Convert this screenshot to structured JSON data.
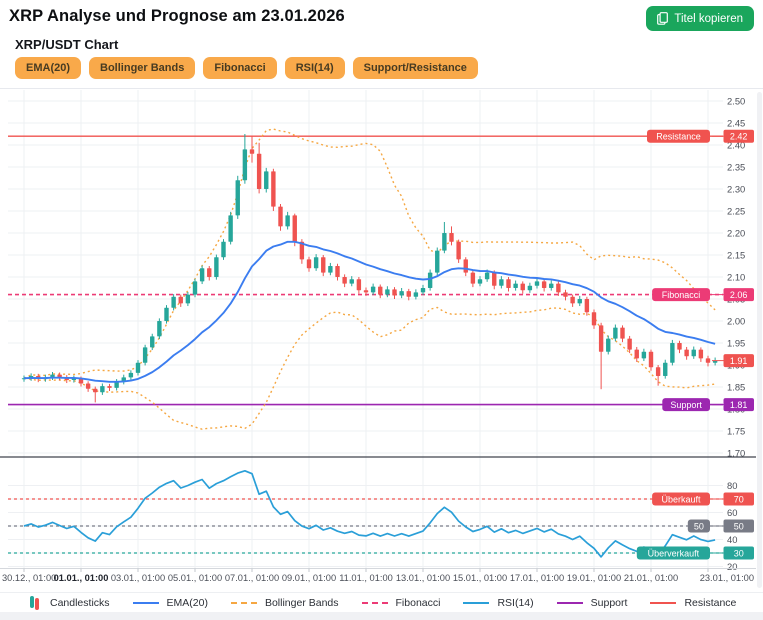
{
  "header": {
    "title": "XRP Analyse und Prognose am 23.01.2026",
    "copy_button": "Titel kopieren"
  },
  "chart_header": {
    "subtitle": "XRP/USDT Chart",
    "indicator_buttons": [
      "EMA(20)",
      "Bollinger Bands",
      "Fibonacci",
      "RSI(14)",
      "Support/Resistance"
    ]
  },
  "legend": {
    "items": [
      {
        "label": "Candlesticks",
        "type": "candles"
      },
      {
        "label": "EMA(20)",
        "color": "#3b7df0",
        "dash": "solid"
      },
      {
        "label": "Bollinger Bands",
        "color": "#f5a742",
        "dash": "dotted"
      },
      {
        "label": "Fibonacci",
        "color": "#ec3b76",
        "dash": "dotted"
      },
      {
        "label": "RSI(14)",
        "color": "#2a9fd8",
        "dash": "solid"
      },
      {
        "label": "Support",
        "color": "#9c27b0",
        "dash": "solid"
      },
      {
        "label": "Resistance",
        "color": "#f0534f",
        "dash": "solid"
      }
    ]
  },
  "colors": {
    "up": "#26a69a",
    "down": "#ef5350",
    "ema": "#3b7df0",
    "bb": "#f5a742",
    "fib": "#ec3b76",
    "support": "#9c27b0",
    "resistance": "#f0534f",
    "rsi": "#2a9fd8",
    "overbought": "#ef5350",
    "mid": "#787b86",
    "oversold": "#26a69a",
    "grid": "#eef0f3",
    "axis_text": "#4b4f58",
    "separator": "#40444e",
    "axis_border": "#d5d8dd"
  },
  "chart_data": {
    "type": "candlestick",
    "pair": "XRP/USDT",
    "x_ticks": [
      "30.12., 01:00",
      "01.01., 01:00",
      "03.01., 01:00",
      "05.01., 01:00",
      "07.01., 01:00",
      "09.01., 01:00",
      "11.01., 01:00",
      "13.01., 01:00",
      "15.01., 01:00",
      "17.01., 01:00",
      "19.01., 01:00",
      "21.01., 01:00",
      "23.01., 01:00"
    ],
    "bold_tick_index": 1,
    "price_axis": {
      "min": 1.7,
      "max": 2.5,
      "step": 0.05
    },
    "rsi_axis": {
      "min": 20,
      "max": 80,
      "step": 10
    },
    "levels": {
      "resistance": 2.42,
      "fibonacci": 2.06,
      "support": 1.81,
      "last_price": 1.91,
      "rsi_overbought": 70,
      "rsi_mid": 50,
      "rsi_oversold": 30
    },
    "level_labels": {
      "resistance": "Resistance",
      "fibonacci": "Fibonacci",
      "support": "Support",
      "overbought": "Überkauft",
      "mid": "50",
      "oversold": "Überverkauft"
    },
    "indicators": {
      "ema_period": 20,
      "bb_period": 20,
      "bb_mult": 2,
      "rsi_period": 14
    },
    "candles": [
      [
        1.868,
        1.876,
        1.862,
        1.87
      ],
      [
        1.87,
        1.881,
        1.864,
        1.875
      ],
      [
        1.875,
        1.88,
        1.861,
        1.868
      ],
      [
        1.868,
        1.878,
        1.862,
        1.872
      ],
      [
        1.872,
        1.884,
        1.866,
        1.878
      ],
      [
        1.878,
        1.883,
        1.865,
        1.872
      ],
      [
        1.872,
        1.877,
        1.859,
        1.866
      ],
      [
        1.866,
        1.876,
        1.86,
        1.87
      ],
      [
        1.87,
        1.874,
        1.851,
        1.858
      ],
      [
        1.858,
        1.863,
        1.839,
        1.846
      ],
      [
        1.846,
        1.851,
        1.815,
        1.838
      ],
      [
        1.838,
        1.858,
        1.832,
        1.852
      ],
      [
        1.852,
        1.857,
        1.841,
        1.848
      ],
      [
        1.848,
        1.868,
        1.842,
        1.862
      ],
      [
        1.862,
        1.878,
        1.856,
        1.872
      ],
      [
        1.872,
        1.888,
        1.866,
        1.882
      ],
      [
        1.882,
        1.911,
        1.876,
        1.905
      ],
      [
        1.905,
        1.946,
        1.899,
        1.94
      ],
      [
        1.94,
        1.971,
        1.934,
        1.965
      ],
      [
        1.965,
        2.006,
        1.959,
        2.0
      ],
      [
        2.0,
        2.036,
        1.994,
        2.03
      ],
      [
        2.03,
        2.061,
        2.024,
        2.055
      ],
      [
        2.055,
        2.06,
        2.032,
        2.04
      ],
      [
        2.04,
        2.066,
        2.034,
        2.06
      ],
      [
        2.06,
        2.096,
        2.054,
        2.09
      ],
      [
        2.09,
        2.126,
        2.084,
        2.12
      ],
      [
        2.12,
        2.125,
        2.092,
        2.1
      ],
      [
        2.1,
        2.151,
        2.094,
        2.145
      ],
      [
        2.145,
        2.186,
        2.139,
        2.18
      ],
      [
        2.18,
        2.248,
        2.174,
        2.24
      ],
      [
        2.24,
        2.33,
        2.232,
        2.32
      ],
      [
        2.32,
        2.425,
        2.312,
        2.39
      ],
      [
        2.39,
        2.42,
        2.36,
        2.38
      ],
      [
        2.38,
        2.405,
        2.29,
        2.3
      ],
      [
        2.3,
        2.348,
        2.292,
        2.34
      ],
      [
        2.34,
        2.346,
        2.25,
        2.26
      ],
      [
        2.26,
        2.266,
        2.205,
        2.215
      ],
      [
        2.215,
        2.248,
        2.208,
        2.24
      ],
      [
        2.24,
        2.244,
        2.17,
        2.18
      ],
      [
        2.18,
        2.186,
        2.13,
        2.14
      ],
      [
        2.14,
        2.146,
        2.112,
        2.12
      ],
      [
        2.12,
        2.152,
        2.114,
        2.145
      ],
      [
        2.145,
        2.15,
        2.102,
        2.11
      ],
      [
        2.11,
        2.132,
        2.104,
        2.125
      ],
      [
        2.125,
        2.13,
        2.092,
        2.1
      ],
      [
        2.1,
        2.106,
        2.077,
        2.085
      ],
      [
        2.085,
        2.102,
        2.079,
        2.095
      ],
      [
        2.095,
        2.1,
        2.062,
        2.07
      ],
      [
        2.07,
        2.076,
        2.057,
        2.065
      ],
      [
        2.065,
        2.085,
        2.059,
        2.078
      ],
      [
        2.078,
        2.083,
        2.052,
        2.06
      ],
      [
        2.06,
        2.079,
        2.054,
        2.072
      ],
      [
        2.072,
        2.077,
        2.05,
        2.058
      ],
      [
        2.058,
        2.075,
        2.052,
        2.068
      ],
      [
        2.068,
        2.073,
        2.047,
        2.055
      ],
      [
        2.055,
        2.072,
        2.049,
        2.065
      ],
      [
        2.065,
        2.082,
        2.059,
        2.075
      ],
      [
        2.075,
        2.117,
        2.069,
        2.11
      ],
      [
        2.11,
        2.167,
        2.104,
        2.16
      ],
      [
        2.16,
        2.225,
        2.154,
        2.2
      ],
      [
        2.2,
        2.215,
        2.172,
        2.18
      ],
      [
        2.18,
        2.185,
        2.132,
        2.14
      ],
      [
        2.14,
        2.145,
        2.102,
        2.11
      ],
      [
        2.11,
        2.115,
        2.077,
        2.085
      ],
      [
        2.085,
        2.102,
        2.079,
        2.095
      ],
      [
        2.095,
        2.117,
        2.089,
        2.11
      ],
      [
        2.11,
        2.115,
        2.072,
        2.08
      ],
      [
        2.08,
        2.102,
        2.074,
        2.095
      ],
      [
        2.095,
        2.1,
        2.067,
        2.075
      ],
      [
        2.075,
        2.092,
        2.069,
        2.085
      ],
      [
        2.085,
        2.09,
        2.062,
        2.07
      ],
      [
        2.07,
        2.087,
        2.064,
        2.08
      ],
      [
        2.08,
        2.097,
        2.074,
        2.09
      ],
      [
        2.09,
        2.095,
        2.067,
        2.075
      ],
      [
        2.075,
        2.092,
        2.069,
        2.085
      ],
      [
        2.085,
        2.09,
        2.057,
        2.065
      ],
      [
        2.065,
        2.071,
        2.047,
        2.055
      ],
      [
        2.055,
        2.06,
        2.032,
        2.04
      ],
      [
        2.04,
        2.057,
        2.034,
        2.05
      ],
      [
        2.05,
        2.055,
        2.012,
        2.02
      ],
      [
        2.02,
        2.026,
        1.982,
        1.99
      ],
      [
        1.99,
        1.996,
        1.845,
        1.93
      ],
      [
        1.93,
        1.967,
        1.924,
        1.96
      ],
      [
        1.96,
        1.992,
        1.954,
        1.985
      ],
      [
        1.985,
        1.99,
        1.952,
        1.96
      ],
      [
        1.96,
        1.966,
        1.927,
        1.935
      ],
      [
        1.935,
        1.941,
        1.907,
        1.915
      ],
      [
        1.915,
        1.937,
        1.909,
        1.93
      ],
      [
        1.93,
        1.935,
        1.887,
        1.895
      ],
      [
        1.895,
        1.9,
        1.853,
        1.875
      ],
      [
        1.875,
        1.912,
        1.869,
        1.905
      ],
      [
        1.905,
        1.957,
        1.899,
        1.95
      ],
      [
        1.95,
        1.955,
        1.927,
        1.935
      ],
      [
        1.935,
        1.941,
        1.912,
        1.92
      ],
      [
        1.92,
        1.942,
        1.914,
        1.935
      ],
      [
        1.935,
        1.94,
        1.907,
        1.915
      ],
      [
        1.915,
        1.921,
        1.897,
        1.905
      ],
      [
        1.905,
        1.917,
        1.899,
        1.91
      ]
    ]
  }
}
